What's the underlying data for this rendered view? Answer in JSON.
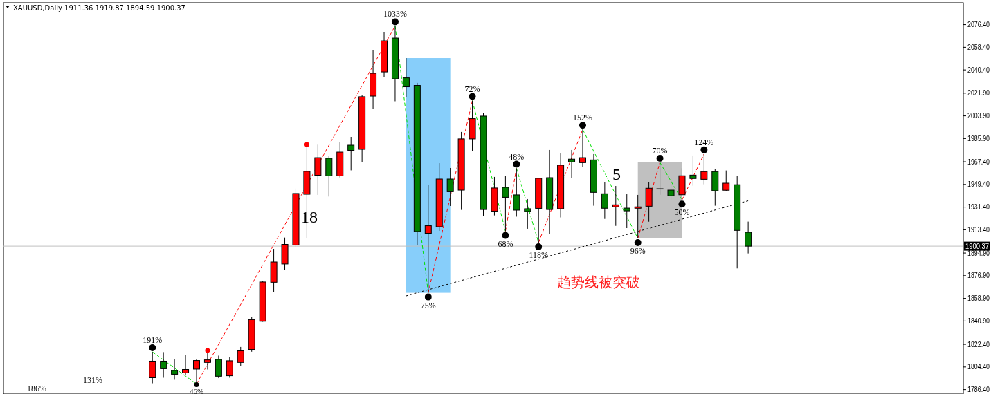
{
  "chart_data": {
    "type": "candlestick",
    "title": "XAUUSD,Daily  1911.36 1919.87 1894.59 1900.37",
    "categories": [
      null,
      null,
      null,
      null,
      null,
      null,
      null,
      null,
      null,
      null,
      null,
      null,
      null,
      null,
      null,
      null,
      null,
      null,
      null,
      null,
      null,
      null,
      null,
      null,
      null,
      null,
      null,
      null,
      null,
      null,
      null,
      null,
      null,
      null,
      null,
      null,
      null,
      null,
      null,
      null,
      null,
      null,
      null,
      null,
      null,
      null,
      null,
      null,
      null,
      null,
      null,
      null,
      null,
      null,
      null,
      null,
      null,
      null,
      null,
      null,
      null,
      null,
      null,
      null,
      null,
      null,
      null,
      null,
      null,
      null,
      null,
      null,
      null,
      null,
      null,
      null,
      null,
      null,
      null,
      null,
      null,
      null,
      null,
      null,
      null,
      null,
      null
    ],
    "ohlc": [
      null,
      null,
      null,
      null,
      null,
      null,
      null,
      null,
      null,
      null,
      null,
      null,
      null,
      [
        1795.8,
        1816.4,
        1791.4,
        1809.0
      ],
      [
        1809.0,
        1816.2,
        1795.8,
        1803.0
      ],
      [
        1801.6,
        1810.9,
        1794.2,
        1798.6
      ],
      [
        1799.7,
        1813.7,
        1798.3,
        1802.4
      ],
      [
        1802.7,
        1810.9,
        1790.8,
        1809.5
      ],
      [
        1808.0,
        1815.3,
        1802.4,
        1810.0
      ],
      [
        1810.4,
        1813.4,
        1795.5,
        1797.0
      ],
      [
        1797.4,
        1812.0,
        1795.8,
        1809.3
      ],
      [
        1808.0,
        1820.3,
        1805.4,
        1817.2
      ],
      [
        1818.3,
        1843.9,
        1816.5,
        1842.0
      ],
      [
        1840.7,
        1872.4,
        1840.3,
        1871.9
      ],
      [
        1871.7,
        1898.2,
        1863.9,
        1887.8
      ],
      [
        1886.2,
        1907.2,
        1881.2,
        1901.8
      ],
      [
        1901.3,
        1946.2,
        1899.6,
        1942.2
      ],
      [
        1941.6,
        1980.1,
        1906.8,
        1959.8
      ],
      [
        1956.7,
        1981.0,
        1941.1,
        1970.7
      ],
      [
        1970.2,
        1971.8,
        1939.8,
        1956.2
      ],
      [
        1956.2,
        1982.8,
        1955.0,
        1975.1
      ],
      [
        1980.6,
        1987.2,
        1960.6,
        1976.5
      ],
      [
        1977.3,
        2020.2,
        1967.2,
        2019.1
      ],
      [
        2019.6,
        2056.0,
        2009.5,
        2037.7
      ],
      [
        2038.8,
        2070.4,
        2034.7,
        2063.5
      ],
      [
        2065.7,
        2075.4,
        2015.5,
        2033.3
      ],
      [
        2034.1,
        2049.8,
        2018.5,
        2027.0
      ],
      [
        2028.1,
        2030.1,
        1901.3,
        1912.0
      ],
      [
        1910.6,
        1949.3,
        1863.3,
        1916.6
      ],
      [
        1915.8,
        1966.3,
        1912.5,
        1953.7
      ],
      [
        1953.7,
        1962.5,
        1932.3,
        1943.6
      ],
      [
        1944.9,
        1991.1,
        1929.2,
        1985.6
      ],
      [
        1985.6,
        2016.0,
        1976.2,
        2001.7
      ],
      [
        2003.7,
        2006.4,
        1924.6,
        1929.5
      ],
      [
        1928.2,
        1955.4,
        1924.8,
        1946.6
      ],
      [
        1947.1,
        1955.9,
        1912.2,
        1939.2
      ],
      [
        1941.1,
        1962.2,
        1923.8,
        1929.0
      ],
      [
        1930.1,
        1937.8,
        1914.2,
        1927.9
      ],
      [
        1930.4,
        1954.5,
        1903.2,
        1954.3
      ],
      [
        1954.8,
        1976.8,
        1910.3,
        1929.5
      ],
      [
        1930.1,
        1974.0,
        1923.2,
        1964.7
      ],
      [
        1969.5,
        1976.8,
        1954.4,
        1967.3
      ],
      [
        1966.7,
        1993.1,
        1963.2,
        1970.7
      ],
      [
        1968.9,
        1973.5,
        1932.5,
        1943.1
      ],
      [
        1942.0,
        1951.5,
        1922.0,
        1930.5
      ],
      [
        1931.6,
        1948.2,
        1916.5,
        1933.2
      ],
      [
        1930.6,
        1941.6,
        1914.7,
        1928.4
      ],
      [
        1930.5,
        1941.1,
        1906.5,
        1931.6
      ],
      [
        1932.1,
        1951.0,
        1919.8,
        1946.4
      ],
      [
        1946.0,
        1966.9,
        1941.2,
        1946.0
      ],
      [
        1944.9,
        1955.0,
        1937.3,
        1940.4
      ],
      [
        1941.2,
        1962.3,
        1937.1,
        1956.3
      ],
      [
        1956.8,
        1972.4,
        1948.4,
        1954.1
      ],
      [
        1953.5,
        1973.6,
        1949.5,
        1959.6
      ],
      [
        1959.6,
        1961.4,
        1932.5,
        1944.4
      ],
      [
        1944.8,
        1960.5,
        1944.0,
        1950.4
      ],
      [
        1949.2,
        1955.9,
        1882.7,
        1912.9
      ],
      [
        1911.36,
        1919.87,
        1894.59,
        1900.37
      ],
      null,
      null,
      null,
      null,
      null,
      null,
      null,
      null,
      null,
      null,
      null,
      null,
      null,
      null,
      null,
      null,
      null,
      null,
      null
    ],
    "colors": [
      null,
      null,
      null,
      null,
      null,
      null,
      null,
      null,
      null,
      null,
      null,
      null,
      null,
      "#ff0000",
      "#008000",
      "#008000",
      "#ff0000",
      "#ff0000",
      "#ff0000",
      "#008000",
      "#ff0000",
      "#ff0000",
      "#ff0000",
      "#ff0000",
      "#ff0000",
      "#ff0000",
      "#ff0000",
      "#ff0000",
      "#ff0000",
      "#008000",
      "#ff0000",
      "#008000",
      "#ff0000",
      "#ff0000",
      "#ff0000",
      "#008000",
      "#008000",
      "#008000",
      "#ff0000",
      "#ff0000",
      "#008000",
      "#ff0000",
      "#ff0000",
      "#008000",
      "#ff0000",
      "#008000",
      "#008000",
      "#008000",
      "#ff0000",
      "#008000",
      "#ff0000",
      "#008000",
      "#ff0000",
      "#008000",
      "#008000",
      "#ff0000",
      "#008000",
      "#ff0000",
      "#ff0000",
      "#000000",
      "#008000",
      "#ff0000",
      "#008000",
      "#ff0000",
      "#008000",
      "#ff0000",
      "#008000",
      "#008000",
      null,
      null,
      null,
      null,
      null,
      null,
      null,
      null,
      null,
      null,
      null,
      null,
      null,
      null,
      null,
      null,
      null,
      null,
      null
    ],
    "series": [
      {
        "type": "scatter",
        "marker": "circle",
        "color": "#ff0000",
        "values": [
          null,
          null,
          null,
          null,
          null,
          null,
          null,
          null,
          null,
          null,
          null,
          null,
          null,
          null,
          null,
          null,
          null,
          null,
          1817.5,
          null,
          null,
          null,
          null,
          null,
          null,
          null,
          null,
          1981.2,
          null,
          null,
          null,
          null,
          null,
          null,
          null,
          null,
          null,
          null,
          null,
          null,
          null,
          null,
          null,
          null,
          null,
          null,
          null,
          null,
          null,
          null,
          null,
          null,
          null,
          null,
          null,
          null,
          null,
          null,
          null,
          null,
          null,
          null,
          null,
          null,
          null,
          null,
          null,
          null,
          null,
          null,
          null,
          null,
          null,
          null,
          null,
          null,
          null,
          null,
          null,
          null,
          null,
          null,
          null,
          null,
          null,
          null,
          null
        ]
      },
      {
        "type": "line",
        "line_style": "dotted",
        "color": "#000000",
        "values": [
          null,
          null,
          null,
          null,
          null,
          null,
          null,
          null,
          null,
          null,
          null,
          null,
          null,
          null,
          null,
          null,
          null,
          null,
          null,
          null,
          null,
          null,
          null,
          null,
          null,
          null,
          null,
          null,
          null,
          null,
          null,
          null,
          null,
          null,
          null,
          null,
          1860.9,
          null,
          null,
          null,
          null,
          null,
          null,
          null,
          null,
          null,
          null,
          null,
          null,
          null,
          null,
          null,
          null,
          null,
          null,
          null,
          null,
          null,
          null,
          null,
          null,
          null,
          null,
          null,
          null,
          null,
          null,
          1936.4,
          null,
          null,
          null,
          null,
          null,
          null,
          null,
          null,
          null,
          null,
          null,
          null,
          null,
          null,
          null,
          null,
          null,
          null,
          null
        ]
      }
    ],
    "ylim": [
      1782.9,
      2093.2
    ],
    "yticks": [
      {
        "value": 1786.4,
        "label": "1786.40"
      },
      {
        "value": 1804.4,
        "label": "1804.40"
      },
      {
        "value": 1822.4,
        "label": "1822.40"
      },
      {
        "value": 1840.9,
        "label": "1840.90"
      },
      {
        "value": 1858.9,
        "label": "1858.90"
      },
      {
        "value": 1876.9,
        "label": "1876.90"
      },
      {
        "value": 1894.9,
        "label": "1894.90"
      },
      {
        "value": 1913.4,
        "label": "1913.40"
      },
      {
        "value": 1931.4,
        "label": "1931.40"
      },
      {
        "value": 1949.4,
        "label": "1949.40"
      },
      {
        "value": 1967.4,
        "label": "1967.40"
      },
      {
        "value": 1985.9,
        "label": "1985.90"
      },
      {
        "value": 2003.9,
        "label": "2003.90"
      },
      {
        "value": 2021.9,
        "label": "2021.90"
      },
      {
        "value": 2040.4,
        "label": "2040.40"
      },
      {
        "value": 2058.4,
        "label": "2058.40"
      },
      {
        "value": 2076.4,
        "label": "2076.40"
      }
    ],
    "tick_labels": "y",
    "grid": false,
    "ref_lines": [
      {
        "axis": "y",
        "value": 1900.37,
        "label": "1900.37",
        "color": "#c0c0c0"
      }
    ],
    "bands": [
      {
        "axis": "y",
        "from": 1863.3,
        "to": 2049.8,
        "color": "#87cefa"
      },
      {
        "axis": "y",
        "from": 1906.5,
        "to": 1966.9,
        "color": "#c0c0c0"
      }
    ],
    "annotations": [
      {
        "text": "191%",
        "y": 1816.4
      },
      {
        "text": "46%",
        "y": 1790.8
      },
      {
        "text": "1033%",
        "y": 2075.4
      },
      {
        "text": "75%",
        "y": 1863.3
      },
      {
        "text": "72%",
        "y": 2016.0
      },
      {
        "text": "68%",
        "y": 1912.2
      },
      {
        "text": "48%",
        "y": 1962.2
      },
      {
        "text": "118%",
        "y": 1903.2
      },
      {
        "text": "152%",
        "y": 1993.1
      },
      {
        "text": "96%",
        "y": 1906.5
      },
      {
        "text": "70%",
        "y": 1966.9
      },
      {
        "text": "50%",
        "y": 1937.1
      },
      {
        "text": "124%",
        "y": 1973.6
      },
      "18",
      "5",
      "趋势线被突破",
      "131%",
      "186%"
    ]
  }
}
